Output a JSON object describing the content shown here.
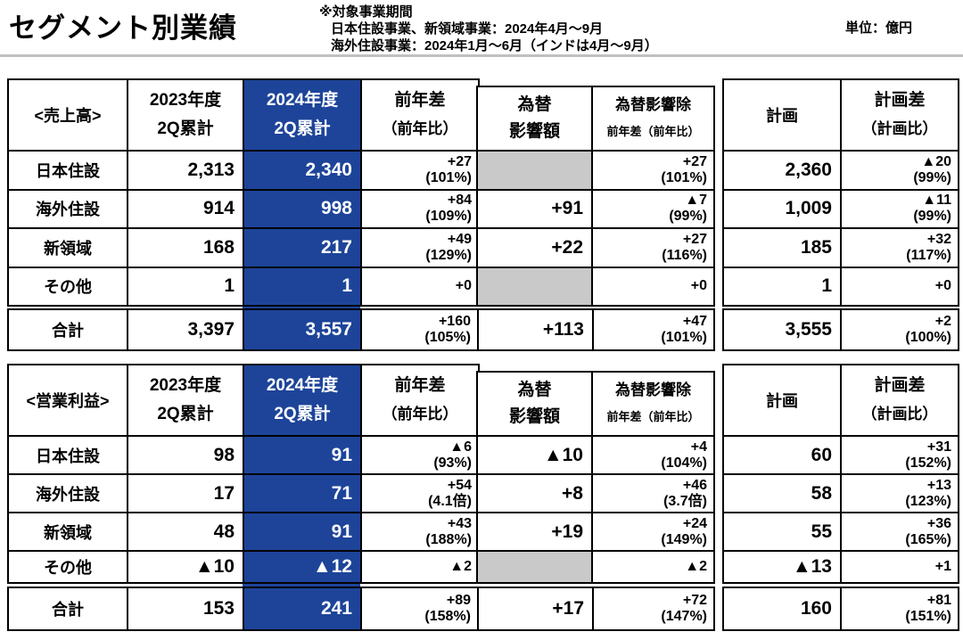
{
  "page": {
    "title": "セグメント別業績",
    "note1": "※対象事業期間",
    "note2": "日本住設事業、新領域事業：2024年4月～9月",
    "note3": "海外住設事業：2024年1月～6月（インドは4月～9月）",
    "unit": "単位：億円"
  },
  "columns": {
    "fy2023_1": "2023年度",
    "fy2023_2": "2Q累計",
    "fy2024_1": "2024年度",
    "fy2024_2": "2Q累計",
    "yoy_1": "前年差",
    "yoy_2": "（前年比）",
    "fx_1": "為替",
    "fx_2": "影響額",
    "fxex_1": "為替影響除",
    "fxex_2": "前年差（前年比）",
    "plan": "計画",
    "plandiff_1": "計画差",
    "plandiff_2": "（計画比）"
  },
  "colors": {
    "accent_blue": "#1d4499",
    "gray_cell": "#c9c9c9",
    "divider": "#c0c0c0",
    "border": "#000000"
  },
  "sales": {
    "label": "<売上高>",
    "rows": [
      {
        "name": "日本住設",
        "v23": "2,313",
        "v24": "2,340",
        "yoy1": "+27",
        "yoy2": "(101%)",
        "fx": "",
        "fxe1": "+27",
        "fxe2": "(101%)",
        "plan": "2,360",
        "pd1": "▲20",
        "pd2": "(99%)"
      },
      {
        "name": "海外住設",
        "v23": "914",
        "v24": "998",
        "yoy1": "+84",
        "yoy2": "(109%)",
        "fx": "+91",
        "fxe1": "▲7",
        "fxe2": "(99%)",
        "plan": "1,009",
        "pd1": "▲11",
        "pd2": "(99%)"
      },
      {
        "name": "新領域",
        "v23": "168",
        "v24": "217",
        "yoy1": "+49",
        "yoy2": "(129%)",
        "fx": "+22",
        "fxe1": "+27",
        "fxe2": "(116%)",
        "plan": "185",
        "pd1": "+32",
        "pd2": "(117%)"
      },
      {
        "name": "その他",
        "v23": "1",
        "v24": "1",
        "yoy1": "+0",
        "yoy2": "",
        "fx": "",
        "fxe1": "+0",
        "fxe2": "",
        "plan": "1",
        "pd1": "+0",
        "pd2": ""
      }
    ],
    "total": {
      "name": "合計",
      "v23": "3,397",
      "v24": "3,557",
      "yoy1": "+160",
      "yoy2": "(105%)",
      "fx": "+113",
      "fxe1": "+47",
      "fxe2": "(101%)",
      "plan": "3,555",
      "pd1": "+2",
      "pd2": "(100%)"
    }
  },
  "profit": {
    "label": "<営業利益>",
    "rows": [
      {
        "name": "日本住設",
        "v23": "98",
        "v24": "91",
        "yoy1": "▲6",
        "yoy2": "(93%)",
        "fx": "▲10",
        "fxe1": "+4",
        "fxe2": "(104%)",
        "plan": "60",
        "pd1": "+31",
        "pd2": "(152%)"
      },
      {
        "name": "海外住設",
        "v23": "17",
        "v24": "71",
        "yoy1": "+54",
        "yoy2": "(4.1倍)",
        "fx": "+8",
        "fxe1": "+46",
        "fxe2": "(3.7倍)",
        "plan": "58",
        "pd1": "+13",
        "pd2": "(123%)"
      },
      {
        "name": "新領域",
        "v23": "48",
        "v24": "91",
        "yoy1": "+43",
        "yoy2": "(188%)",
        "fx": "+19",
        "fxe1": "+24",
        "fxe2": "(149%)",
        "plan": "55",
        "pd1": "+36",
        "pd2": "(165%)"
      },
      {
        "name": "その他",
        "v23": "▲10",
        "v24": "▲12",
        "yoy1": "▲2",
        "yoy2": "",
        "fx": "",
        "fxe1": "▲2",
        "fxe2": "",
        "plan": "▲13",
        "pd1": "+1",
        "pd2": ""
      }
    ],
    "total": {
      "name": "合計",
      "v23": "153",
      "v24": "241",
      "yoy1": "+89",
      "yoy2": "(158%)",
      "fx": "+17",
      "fxe1": "+72",
      "fxe2": "(147%)",
      "plan": "160",
      "pd1": "+81",
      "pd2": "(151%)"
    }
  }
}
